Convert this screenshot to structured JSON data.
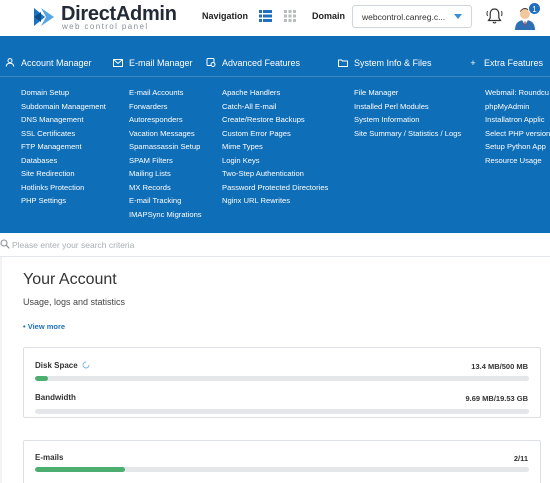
{
  "brand": {
    "name": "DirectAdmin",
    "tagline": "web control panel",
    "color": "#1a73c2"
  },
  "topbar": {
    "navigation_label": "Navigation",
    "domain_label": "Domain",
    "domain_value": "webcontrol.canreg.c...",
    "notification_count": "1"
  },
  "menu": {
    "background": "#0f6eb8",
    "categories": [
      {
        "label": "Account Manager",
        "icon": "user-icon",
        "items": [
          "Domain Setup",
          "Subdomain Management",
          "DNS Management",
          "SSL Certificates",
          "FTP Management",
          "Databases",
          "Site Redirection",
          "Hotlinks Protection",
          "PHP Settings"
        ]
      },
      {
        "label": "E-mail Manager",
        "icon": "envelope-icon",
        "items": [
          "E-mail Accounts",
          "Forwarders",
          "Autoresponders",
          "Vacation Messages",
          "Spamassassin Setup",
          "SPAM Filters",
          "Mailing Lists",
          "MX Records",
          "E-mail Tracking",
          "IMAPSync Migrations"
        ]
      },
      {
        "label": "Advanced Features",
        "icon": "gear-icon",
        "items": [
          "Apache Handlers",
          "Catch-All E-mail",
          "Create/Restore Backups",
          "Custom Error Pages",
          "Mime Types",
          "Login Keys",
          "Two-Step Authentication",
          "Password Protected Directories",
          "Nginx URL Rewrites"
        ]
      },
      {
        "label": "System Info & Files",
        "icon": "folder-icon",
        "items": [
          "File Manager",
          "Installed Perl Modules",
          "System Information",
          "Site Summary / Statistics / Logs"
        ]
      },
      {
        "label": "Extra Features",
        "icon": "plus-icon",
        "items": [
          "Webmail: Roundcu",
          "phpMyAdmin",
          "Installatron Applic",
          "Select PHP version",
          "Setup Python App",
          "Resource Usage"
        ]
      }
    ]
  },
  "search": {
    "placeholder": "Please enter your search criteria"
  },
  "account": {
    "title": "Your Account",
    "subtitle": "Usage, logs and statistics",
    "view_more": "• View more",
    "stats": [
      {
        "label": "Disk Space",
        "value": "13.4 MB/500 MB",
        "percent": 2.7
      },
      {
        "label": "Bandwidth",
        "value": "9.69 MB/19.53 GB",
        "percent": 0.05
      },
      {
        "label": "E-mails",
        "value": "2/11",
        "percent": 18.2
      }
    ],
    "bar_color": "#4caf6f"
  }
}
